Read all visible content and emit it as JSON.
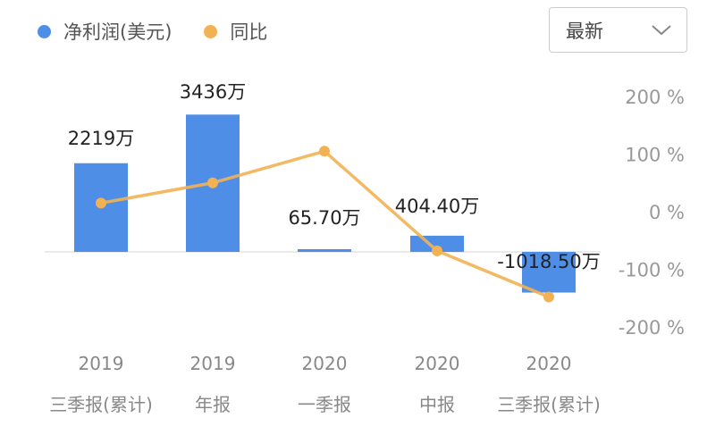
{
  "legend": [
    {
      "label": "净利润(美元)",
      "color": "#4f8ee6"
    },
    {
      "label": "同比",
      "color": "#f2b152"
    }
  ],
  "dropdown": {
    "selected": "最新",
    "icon": "chevron-down-icon"
  },
  "chart_data": {
    "type": "bar",
    "categories": [
      {
        "year": "2019",
        "period": "三季报(累计)"
      },
      {
        "year": "2019",
        "period": "年报"
      },
      {
        "year": "2020",
        "period": "一季报"
      },
      {
        "year": "2020",
        "period": "中报"
      },
      {
        "year": "2020",
        "period": "三季报(累计)"
      }
    ],
    "series": [
      {
        "name": "净利润(美元)",
        "type": "bar",
        "color": "#4f8ee6",
        "axis": "left",
        "values": [
          2219,
          3436,
          65.7,
          404.4,
          -1018.5
        ],
        "labels": [
          "2219万",
          "3436万",
          "65.70万",
          "404.40万",
          "-1018.50万"
        ]
      },
      {
        "name": "同比",
        "type": "line",
        "color": "#f2b152",
        "axis": "right",
        "values": [
          15,
          50,
          105,
          -68,
          -148
        ]
      }
    ],
    "y_right": {
      "ticks": [
        200,
        100,
        0,
        -100,
        -200
      ],
      "tick_labels": [
        "200 %",
        "100 %",
        "0 %",
        "-100 %",
        "-200 %"
      ],
      "ylim": [
        -200,
        200
      ]
    },
    "grid": false,
    "legend_position": "top-left"
  }
}
